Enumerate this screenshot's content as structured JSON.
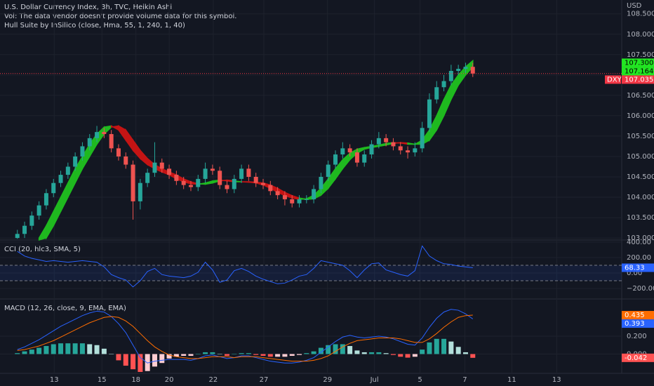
{
  "chart_data": [
    {
      "type": "candlestick",
      "title": "U.S. Dollar Currency Index, 3h, TVC, Heikin Ashi",
      "subtitle": "Vol: The data vendor doesn't provide volume data for this symbol.",
      "currency": "USD",
      "xlim": [
        -2.4,
        83.6
      ],
      "xticks": [
        {
          "value": 5.1,
          "label": "13"
        },
        {
          "value": 11.7,
          "label": "15"
        },
        {
          "value": 16.4,
          "label": "18"
        },
        {
          "value": 21.0,
          "label": "20"
        },
        {
          "value": 27.1,
          "label": "22"
        },
        {
          "value": 34.1,
          "label": "27"
        },
        {
          "value": 42.9,
          "label": "29"
        },
        {
          "value": 49.4,
          "label": "Jul"
        },
        {
          "value": 55.7,
          "label": "5"
        },
        {
          "value": 61.9,
          "label": "7"
        },
        {
          "value": 68.4,
          "label": "11"
        },
        {
          "value": 74.6,
          "label": "13"
        }
      ],
      "ylim": [
        102.95,
        108.84
      ],
      "yticks": [
        {
          "value": 103,
          "label": "103.000"
        },
        {
          "value": 103.5,
          "label": "103.500"
        },
        {
          "value": 104,
          "label": "104.000"
        },
        {
          "value": 104.5,
          "label": "104.500"
        },
        {
          "value": 105,
          "label": "105.000"
        },
        {
          "value": 105.5,
          "label": "105.500"
        },
        {
          "value": 106,
          "label": "106.000"
        },
        {
          "value": 106.5,
          "label": "106.500"
        },
        {
          "value": 107,
          "label": "107.000"
        },
        {
          "value": 107.5,
          "label": "107.500"
        },
        {
          "value": 108,
          "label": "108.000"
        },
        {
          "value": 108.5,
          "label": "108.500"
        }
      ],
      "grid": true,
      "up_color": "#26a69a",
      "down_color": "#ef5350",
      "open": [
        103.0,
        103.1,
        103.3,
        103.55,
        103.8,
        104.1,
        104.35,
        104.55,
        104.75,
        105.0,
        105.25,
        105.45,
        105.6,
        105.55,
        105.2,
        105.0,
        104.8,
        103.9,
        104.35,
        104.6,
        104.85,
        104.7,
        104.55,
        104.4,
        104.3,
        104.25,
        104.45,
        104.7,
        104.65,
        104.3,
        104.2,
        104.45,
        104.7,
        104.5,
        104.35,
        104.3,
        104.15,
        104.05,
        103.95,
        103.85,
        103.95,
        103.95,
        104.2,
        104.5,
        104.8,
        105.05,
        105.2,
        105.1,
        104.85,
        105.05,
        105.3,
        105.45,
        105.35,
        105.25,
        105.15,
        105.1,
        105.2,
        105.7,
        106.4,
        106.7,
        106.85,
        107.1,
        107.15,
        107.2
      ],
      "high": [
        103.2,
        103.4,
        103.65,
        103.9,
        104.2,
        104.45,
        104.65,
        104.85,
        105.1,
        105.35,
        105.55,
        105.75,
        105.7,
        105.65,
        105.3,
        105.1,
        104.9,
        104.45,
        104.7,
        105.35,
        104.95,
        104.8,
        104.65,
        104.5,
        104.4,
        104.55,
        104.85,
        104.8,
        104.75,
        104.4,
        104.55,
        104.8,
        104.8,
        104.6,
        104.45,
        104.4,
        104.25,
        104.15,
        104.05,
        104.05,
        104.05,
        104.3,
        104.6,
        104.9,
        105.15,
        105.35,
        105.3,
        105.2,
        105.15,
        105.4,
        105.6,
        105.55,
        105.45,
        105.35,
        105.25,
        105.35,
        105.85,
        106.55,
        106.85,
        107.0,
        107.25,
        107.25,
        107.3,
        107.3
      ],
      "low": [
        102.98,
        103.0,
        103.2,
        103.45,
        103.7,
        104.0,
        104.25,
        104.45,
        104.65,
        104.9,
        105.15,
        105.35,
        105.45,
        105.1,
        104.9,
        104.7,
        103.45,
        103.7,
        104.25,
        104.5,
        104.6,
        104.45,
        104.3,
        104.2,
        104.15,
        104.15,
        104.35,
        104.55,
        104.2,
        104.1,
        104.1,
        104.35,
        104.4,
        104.25,
        104.2,
        104.05,
        103.95,
        103.8,
        103.75,
        103.75,
        103.85,
        103.85,
        104.1,
        104.4,
        104.7,
        104.95,
        105.0,
        104.75,
        104.75,
        104.95,
        105.2,
        105.25,
        105.15,
        105.05,
        104.95,
        105.0,
        105.1,
        105.6,
        106.3,
        106.6,
        106.75,
        107.0,
        107.05,
        106.95
      ],
      "close": [
        103.1,
        103.3,
        103.55,
        103.8,
        104.1,
        104.35,
        104.55,
        104.75,
        105.0,
        105.25,
        105.45,
        105.6,
        105.55,
        105.2,
        105.0,
        104.8,
        103.9,
        104.35,
        104.6,
        104.85,
        104.7,
        104.55,
        104.4,
        104.3,
        104.25,
        104.45,
        104.7,
        104.65,
        104.3,
        104.2,
        104.45,
        104.7,
        104.5,
        104.35,
        104.3,
        104.15,
        104.05,
        103.95,
        103.85,
        103.95,
        103.95,
        104.2,
        104.5,
        104.8,
        105.05,
        105.2,
        105.1,
        104.85,
        105.05,
        105.3,
        105.45,
        105.35,
        105.25,
        105.15,
        105.1,
        105.2,
        105.7,
        106.4,
        106.7,
        106.85,
        107.1,
        107.15,
        107.2,
        107.035
      ],
      "overlay": {
        "name": "Hull Suite by InSilico (close, Hma, 55, 1, 240, 1, 40)",
        "up_color": "#1fb91f",
        "down_color": "#c41414",
        "hull": [
          null,
          null,
          null,
          103.0,
          103.3,
          103.65,
          104.0,
          104.35,
          104.7,
          105.0,
          105.3,
          105.55,
          105.72,
          105.75,
          105.65,
          105.4,
          105.15,
          104.95,
          104.8,
          104.7,
          104.62,
          104.55,
          104.45,
          104.38,
          104.33,
          104.32,
          104.35,
          104.4,
          104.42,
          104.4,
          104.38,
          104.38,
          104.37,
          104.35,
          104.3,
          104.22,
          104.12,
          104.04,
          103.98,
          103.95,
          103.96,
          104.05,
          104.22,
          104.45,
          104.7,
          104.92,
          105.08,
          105.18,
          105.22,
          105.25,
          105.28,
          105.32,
          105.34,
          105.33,
          105.3,
          105.3,
          105.4,
          105.65,
          106.0,
          106.4,
          106.75,
          107.0,
          107.2,
          107.35
        ],
        "lag": [
          null,
          null,
          null,
          102.95,
          103.0,
          103.3,
          103.65,
          104.0,
          104.35,
          104.7,
          105.0,
          105.3,
          105.55,
          105.72,
          105.75,
          105.65,
          105.4,
          105.15,
          104.95,
          104.8,
          104.7,
          104.62,
          104.55,
          104.45,
          104.38,
          104.33,
          104.32,
          104.35,
          104.4,
          104.42,
          104.4,
          104.38,
          104.38,
          104.37,
          104.35,
          104.3,
          104.22,
          104.12,
          104.04,
          103.98,
          103.95,
          103.96,
          104.05,
          104.22,
          104.45,
          104.7,
          104.92,
          105.08,
          105.18,
          105.22,
          105.25,
          105.28,
          105.32,
          105.34,
          105.33,
          105.3,
          105.3,
          105.4,
          105.65,
          106.0,
          106.4,
          106.75,
          107.0,
          107.2
        ]
      },
      "price_labels": [
        {
          "value": 107.3,
          "label": "107.300",
          "color": "#22e622"
        },
        {
          "value": 107.164,
          "color": "#22e622"
        }
      ],
      "last_price": {
        "symbol": "DXY",
        "color": "#f23645"
      }
    },
    {
      "type": "line",
      "title": "CCI (20, hlc3, SMA, 5)",
      "ylim": [
        -336,
        427
      ],
      "yticks": [
        {
          "value": 400,
          "label": "400.00"
        },
        {
          "value": 200,
          "label": "200.00"
        },
        {
          "value": 0,
          "label": "0.00"
        },
        {
          "value": -200,
          "label": "−200.00"
        }
      ],
      "color": "#2962ff",
      "bands": [
        100,
        -100
      ],
      "values": [
        280,
        220,
        190,
        170,
        150,
        160,
        150,
        140,
        150,
        160,
        150,
        140,
        80,
        -20,
        -60,
        -90,
        -180,
        -100,
        20,
        60,
        -20,
        -40,
        -50,
        -60,
        -40,
        10,
        140,
        40,
        -120,
        -90,
        30,
        60,
        20,
        -40,
        -80,
        -110,
        -140,
        -130,
        -90,
        -40,
        -20,
        60,
        160,
        140,
        120,
        100,
        30,
        -60,
        40,
        120,
        130,
        40,
        10,
        -20,
        -40,
        30,
        350,
        220,
        160,
        120,
        110,
        90,
        80,
        68.33
      ]
    },
    {
      "type": "macd",
      "title": "MACD (12, 26, close, 9, EMA, EMA)",
      "ylim": [
        -0.216,
        0.616
      ],
      "yticks": [
        {
          "value": 0.2,
          "label": "0.200"
        },
        {
          "value": 0,
          "label": "0.000"
        }
      ],
      "macd_color": "#2962ff",
      "signal_color": "#ff6d00",
      "histogram_colors": [
        "#26a69a",
        "#b2dfdb",
        "#ffcdd2",
        "#ff5252"
      ],
      "macd": [
        0.05,
        0.08,
        0.12,
        0.16,
        0.21,
        0.26,
        0.31,
        0.35,
        0.39,
        0.43,
        0.46,
        0.48,
        0.47,
        0.42,
        0.34,
        0.24,
        0.1,
        -0.04,
        -0.1,
        -0.08,
        -0.07,
        -0.06,
        -0.06,
        -0.06,
        -0.07,
        -0.05,
        -0.02,
        -0.01,
        -0.03,
        -0.05,
        -0.04,
        -0.02,
        -0.02,
        -0.04,
        -0.06,
        -0.08,
        -0.09,
        -0.1,
        -0.1,
        -0.09,
        -0.07,
        -0.04,
        0.02,
        0.08,
        0.14,
        0.19,
        0.21,
        0.19,
        0.18,
        0.19,
        0.2,
        0.19,
        0.17,
        0.14,
        0.11,
        0.1,
        0.18,
        0.3,
        0.4,
        0.47,
        0.5,
        0.49,
        0.45,
        0.393
      ],
      "signal": [
        0.04,
        0.05,
        0.07,
        0.09,
        0.12,
        0.15,
        0.19,
        0.23,
        0.27,
        0.31,
        0.35,
        0.38,
        0.41,
        0.42,
        0.41,
        0.37,
        0.31,
        0.23,
        0.15,
        0.08,
        0.03,
        -0.01,
        -0.03,
        -0.04,
        -0.05,
        -0.05,
        -0.04,
        -0.03,
        -0.03,
        -0.03,
        -0.04,
        -0.03,
        -0.03,
        -0.03,
        -0.04,
        -0.05,
        -0.06,
        -0.07,
        -0.08,
        -0.08,
        -0.08,
        -0.07,
        -0.05,
        -0.02,
        0.03,
        0.08,
        0.12,
        0.15,
        0.16,
        0.17,
        0.18,
        0.18,
        0.18,
        0.17,
        0.15,
        0.13,
        0.13,
        0.17,
        0.23,
        0.3,
        0.36,
        0.41,
        0.43,
        0.435
      ],
      "histogram": [
        0.01,
        0.03,
        0.05,
        0.07,
        0.09,
        0.11,
        0.12,
        0.12,
        0.12,
        0.12,
        0.11,
        0.1,
        0.06,
        0.0,
        -0.07,
        -0.13,
        -0.17,
        -0.2,
        -0.19,
        -0.14,
        -0.1,
        -0.05,
        -0.03,
        -0.02,
        -0.02,
        0.0,
        0.02,
        0.02,
        0.0,
        -0.02,
        0.0,
        0.01,
        0.01,
        -0.01,
        -0.02,
        -0.03,
        -0.03,
        -0.03,
        -0.02,
        -0.01,
        0.01,
        0.03,
        0.07,
        0.1,
        0.11,
        0.11,
        0.09,
        0.04,
        0.02,
        0.02,
        0.02,
        0.01,
        -0.01,
        -0.03,
        -0.04,
        -0.03,
        0.05,
        0.13,
        0.17,
        0.17,
        0.14,
        0.08,
        0.02,
        -0.042
      ]
    }
  ]
}
